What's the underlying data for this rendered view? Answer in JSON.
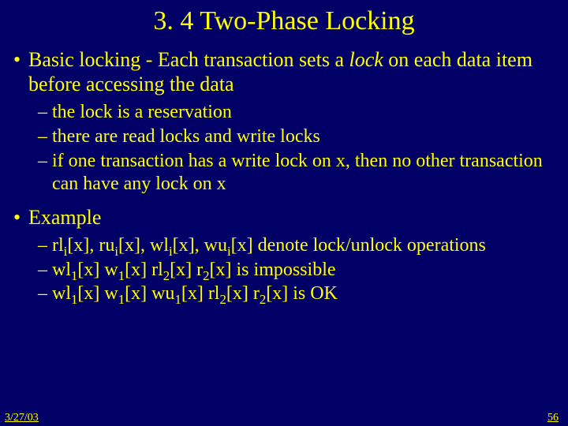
{
  "title": "3. 4 Two-Phase Locking",
  "bullets": {
    "b1a_pre": "Basic locking - Each transaction sets a ",
    "b1a_it": "lock",
    "b1a_post": " on each data item before accessing the data",
    "b2a": "the lock is a reservation",
    "b2b": "there are read locks and write locks",
    "b2c": "if one transaction has a write lock on x, then no other transaction can have any lock on x",
    "b1b": "Example",
    "ex1_rl": "rl",
    "ex1_ru": "ru",
    "ex1_wl": "wl",
    "ex1_wu": "wu",
    "sub_i": "i",
    "sub_1": "1",
    "sub_2": "2",
    "bx": "[x]",
    "comma": ", ",
    "sp": " ",
    "ex1_tail": " denote lock/unlock operations",
    "ex2_wl": "wl",
    "ex2_w": "w",
    "ex2_rl": "rl",
    "ex2_r": "r",
    "ex2_tail": " is impossible",
    "ex3_wl": "wl",
    "ex3_w": "w",
    "ex3_wu": "wu",
    "ex3_rl": "rl",
    "ex3_r": "r",
    "ex3_tail": " is OK"
  },
  "footer": {
    "date": "3/27/03",
    "page": "56"
  }
}
